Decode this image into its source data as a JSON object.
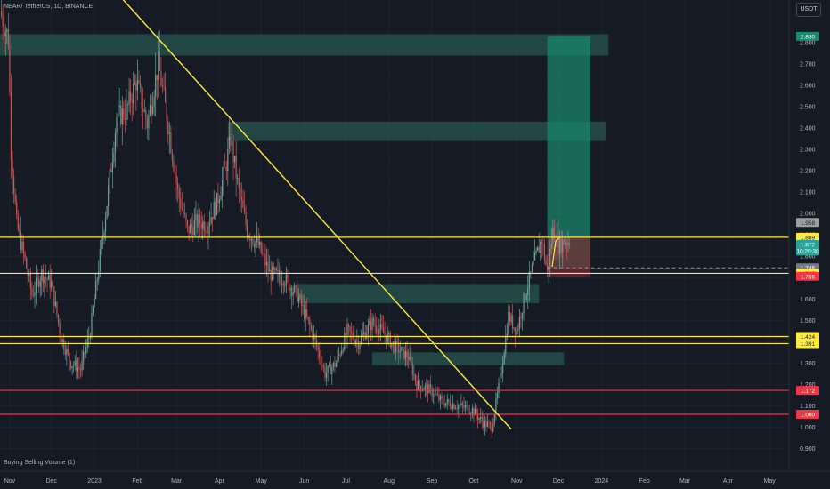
{
  "header": {
    "symbol": "NEAR/ TetherUS, 1D, BINANCE",
    "currency": "USDT"
  },
  "indicator": {
    "label": "Buying Selling Volume (1)"
  },
  "colors": {
    "background": "#161a25",
    "grid": "#1e222d",
    "up": "#6fa498",
    "down": "#c85a5a",
    "zone": "#2c6b5f",
    "resistance": "#ffeb3b",
    "support": "#f23645",
    "target": "#1a8a6e",
    "stop": "#7a2a33",
    "axis_text": "#b2b5be"
  },
  "chart_data": {
    "type": "candlestick",
    "instrument": "NEAR/USDT",
    "timeframe": "1D",
    "exchange": "BINANCE",
    "y_ticks": [
      "0.900",
      "1.000",
      "1.100",
      "1.200",
      "1.300",
      "1.400",
      "1.500",
      "1.600",
      "1.700",
      "1.800",
      "1.900",
      "2.000",
      "2.100",
      "2.200",
      "2.300",
      "2.400",
      "2.500",
      "2.600",
      "2.700",
      "2.800"
    ],
    "y_range": [
      0.885,
      2.9
    ],
    "x_labels": [
      {
        "label": "Nov",
        "day": -61
      },
      {
        "label": "Dec",
        "day": -31
      },
      {
        "label": "2023",
        "day": 0
      },
      {
        "label": "Feb",
        "day": 31
      },
      {
        "label": "Mar",
        "day": 59
      },
      {
        "label": "Apr",
        "day": 90
      },
      {
        "label": "May",
        "day": 120
      },
      {
        "label": "Jun",
        "day": 151
      },
      {
        "label": "Jul",
        "day": 181
      },
      {
        "label": "Aug",
        "day": 212
      },
      {
        "label": "Sep",
        "day": 243
      },
      {
        "label": "Oct",
        "day": 273
      },
      {
        "label": "Nov",
        "day": 304
      },
      {
        "label": "Dec",
        "day": 334
      },
      {
        "label": "2024",
        "day": 365
      },
      {
        "label": "Feb",
        "day": 396
      },
      {
        "label": "Mar",
        "day": 425
      },
      {
        "label": "Apr",
        "day": 456
      },
      {
        "label": "May",
        "day": 486
      }
    ],
    "x_range_days": [
      -68,
      500
    ],
    "last_candle_day": 342,
    "anchors": [
      {
        "day": -68,
        "price": 2.95
      },
      {
        "day": -62,
        "price": 2.82
      },
      {
        "day": -60,
        "price": 2.3
      },
      {
        "day": -56,
        "price": 1.95
      },
      {
        "day": -50,
        "price": 1.78
      },
      {
        "day": -45,
        "price": 1.62
      },
      {
        "day": -38,
        "price": 1.72
      },
      {
        "day": -31,
        "price": 1.67
      },
      {
        "day": -24,
        "price": 1.42
      },
      {
        "day": -17,
        "price": 1.3
      },
      {
        "day": -10,
        "price": 1.27
      },
      {
        "day": -3,
        "price": 1.45
      },
      {
        "day": 2,
        "price": 1.7
      },
      {
        "day": 9,
        "price": 2.05
      },
      {
        "day": 16,
        "price": 2.45
      },
      {
        "day": 23,
        "price": 2.48
      },
      {
        "day": 30,
        "price": 2.62
      },
      {
        "day": 38,
        "price": 2.42
      },
      {
        "day": 46,
        "price": 2.7
      },
      {
        "day": 53,
        "price": 2.42
      },
      {
        "day": 60,
        "price": 2.1
      },
      {
        "day": 67,
        "price": 1.92
      },
      {
        "day": 74,
        "price": 1.96
      },
      {
        "day": 81,
        "price": 1.95
      },
      {
        "day": 88,
        "price": 2.05
      },
      {
        "day": 94,
        "price": 2.2
      },
      {
        "day": 98,
        "price": 2.35
      },
      {
        "day": 104,
        "price": 2.1
      },
      {
        "day": 110,
        "price": 1.92
      },
      {
        "day": 118,
        "price": 1.85
      },
      {
        "day": 126,
        "price": 1.72
      },
      {
        "day": 136,
        "price": 1.7
      },
      {
        "day": 146,
        "price": 1.62
      },
      {
        "day": 158,
        "price": 1.42
      },
      {
        "day": 166,
        "price": 1.25
      },
      {
        "day": 174,
        "price": 1.3
      },
      {
        "day": 182,
        "price": 1.45
      },
      {
        "day": 190,
        "price": 1.4
      },
      {
        "day": 200,
        "price": 1.49
      },
      {
        "day": 208,
        "price": 1.44
      },
      {
        "day": 216,
        "price": 1.38
      },
      {
        "day": 226,
        "price": 1.33
      },
      {
        "day": 232,
        "price": 1.2
      },
      {
        "day": 240,
        "price": 1.18
      },
      {
        "day": 250,
        "price": 1.12
      },
      {
        "day": 262,
        "price": 1.1
      },
      {
        "day": 272,
        "price": 1.08
      },
      {
        "day": 280,
        "price": 1.02
      },
      {
        "day": 286,
        "price": 1.0
      },
      {
        "day": 292,
        "price": 1.22
      },
      {
        "day": 298,
        "price": 1.52
      },
      {
        "day": 304,
        "price": 1.45
      },
      {
        "day": 310,
        "price": 1.62
      },
      {
        "day": 316,
        "price": 1.76
      },
      {
        "day": 322,
        "price": 1.88
      },
      {
        "day": 326,
        "price": 1.72
      },
      {
        "day": 330,
        "price": 1.92
      },
      {
        "day": 334,
        "price": 1.85
      },
      {
        "day": 338,
        "price": 1.87
      },
      {
        "day": 342,
        "price": 1.872
      }
    ],
    "zones": [
      {
        "x1": -68,
        "x2": 370,
        "top": 2.84,
        "bottom": 2.74
      },
      {
        "x1": 96,
        "x2": 368,
        "top": 2.43,
        "bottom": 2.34
      },
      {
        "x1": 146,
        "x2": 320,
        "top": 1.67,
        "bottom": 1.58
      },
      {
        "x1": 200,
        "x2": 338,
        "top": 1.35,
        "bottom": 1.29
      }
    ],
    "horizontal_lines": [
      {
        "price": 1.889,
        "color": "#ffeb3b",
        "x1": -68
      },
      {
        "price": 1.72,
        "color": "#ffeb3b",
        "x1": -68
      },
      {
        "price": 1.424,
        "color": "#ffeb3b",
        "x1": -68
      },
      {
        "price": 1.391,
        "color": "#ffeb3b",
        "x1": -68
      },
      {
        "price": 1.172,
        "color": "#f23645",
        "x1": -68
      },
      {
        "price": 1.06,
        "color": "#f23645",
        "x1": -68
      }
    ],
    "trendline": {
      "day1": 0,
      "price1": 3.15,
      "day2": 300,
      "price2": 0.99
    },
    "position": {
      "day1": 326,
      "day2": 357,
      "entry": 1.746,
      "target": 2.83,
      "stop": 1.706,
      "marker_day": 332
    },
    "price_labels": [
      {
        "text": "2.830",
        "price": 2.83,
        "bg": "#1a8a6e",
        "fg": "#ffffff"
      },
      {
        "text": "1.958",
        "price": 1.958,
        "bg": "#9e9e9e",
        "fg": "#161a25"
      },
      {
        "text": "1.889",
        "price": 1.889,
        "bg": "#ffeb3b",
        "fg": "#161a25"
      },
      {
        "text": "1.872",
        "price": 1.855,
        "bg": "#26a69a",
        "fg": "#ffffff"
      },
      {
        "text": "10:20:30",
        "price": 1.825,
        "bg": "#26a69a",
        "fg": "#ffffff"
      },
      {
        "text": "1.746",
        "price": 1.746,
        "bg": "#787b86",
        "fg": "#ffffff"
      },
      {
        "text": "1.720",
        "price": 1.72,
        "bg": "#ffeb3b",
        "fg": "#161a25"
      },
      {
        "text": "1.706",
        "price": 1.706,
        "bg": "#f23645",
        "fg": "#ffffff"
      },
      {
        "text": "1.424",
        "price": 1.424,
        "bg": "#ffeb3b",
        "fg": "#161a25"
      },
      {
        "text": "1.391",
        "price": 1.391,
        "bg": "#ffeb3b",
        "fg": "#161a25"
      },
      {
        "text": "1.172",
        "price": 1.172,
        "bg": "#f23645",
        "fg": "#ffffff"
      },
      {
        "text": "1.060",
        "price": 1.06,
        "bg": "#f23645",
        "fg": "#ffffff"
      }
    ]
  }
}
